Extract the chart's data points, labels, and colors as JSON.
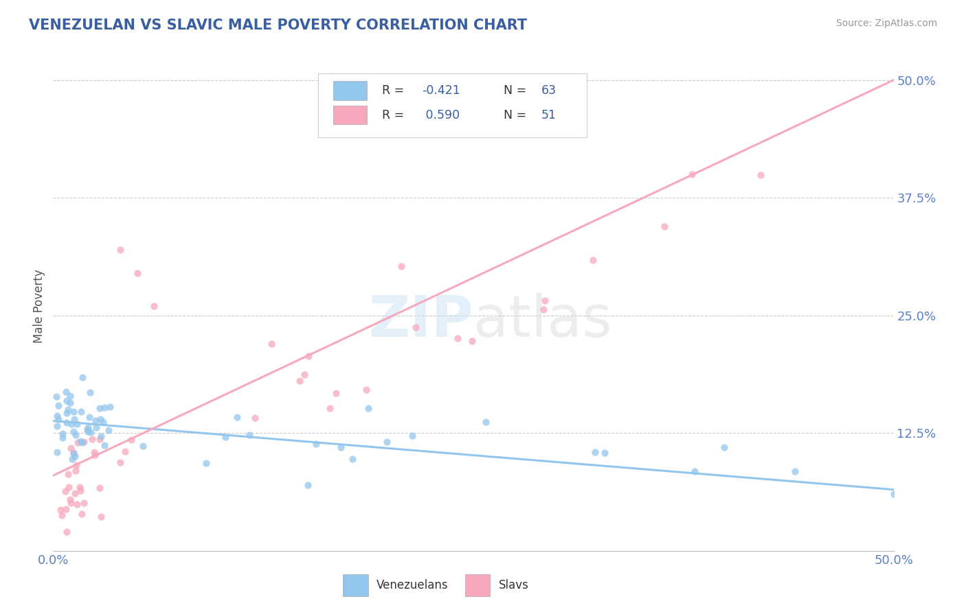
{
  "title": "VENEZUELAN VS SLAVIC MALE POVERTY CORRELATION CHART",
  "source": "Source: ZipAtlas.com",
  "ylabel": "Male Poverty",
  "y_tick_labels": [
    "12.5%",
    "25.0%",
    "37.5%",
    "50.0%"
  ],
  "y_tick_values": [
    0.125,
    0.25,
    0.375,
    0.5
  ],
  "x_tick_labels": [
    "0.0%",
    "50.0%"
  ],
  "x_tick_values": [
    0.0,
    0.5
  ],
  "xlim": [
    0.0,
    0.5
  ],
  "ylim": [
    0.0,
    0.52
  ],
  "venezuelan_color": "#93c6ed",
  "slavic_color": "#f7a8bc",
  "R_venezuelan": -0.421,
  "N_venezuelan": 63,
  "R_slavic": 0.59,
  "N_slavic": 51,
  "watermark_zip": "ZIP",
  "watermark_atlas": "atlas",
  "background_color": "#ffffff",
  "grid_color": "#cccccc",
  "title_color": "#3a5fa0",
  "axis_label_color": "#5a80c8",
  "source_color": "#999999",
  "legend_label_color": "#333333",
  "legend_value_color": "#3a5fa0"
}
